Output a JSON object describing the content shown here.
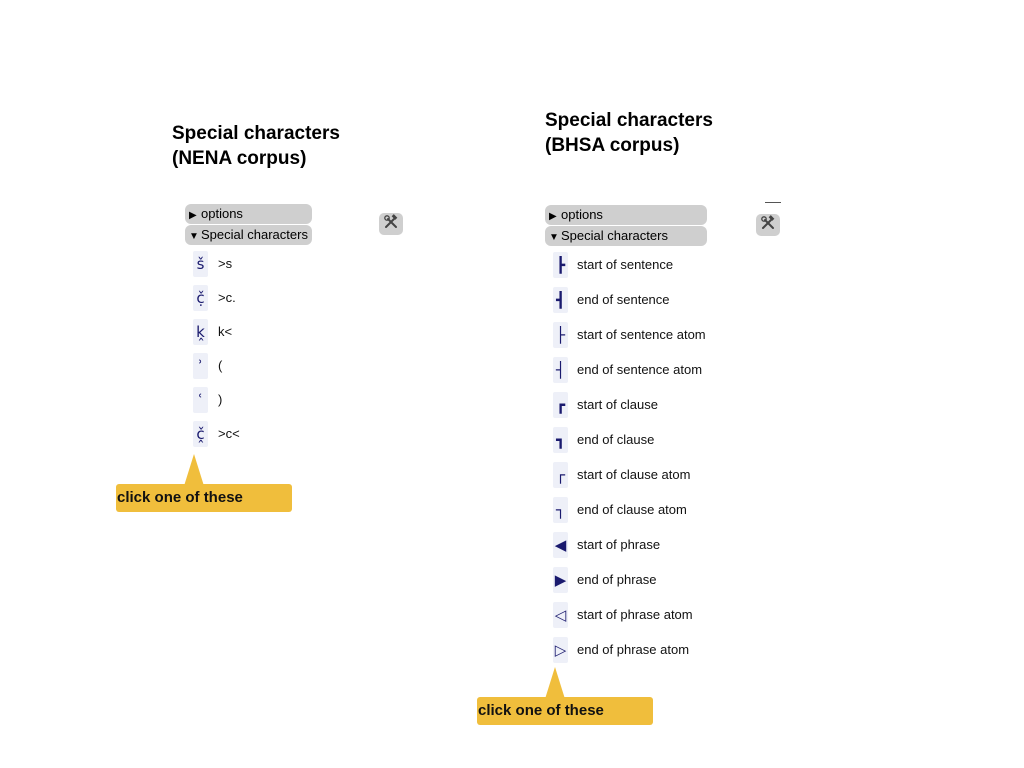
{
  "left": {
    "title_line1": "Special characters",
    "title_line2": "(NENA corpus)",
    "options_label": "options",
    "special_label": "Special characters",
    "tool_icon": "tools-icon",
    "items": [
      {
        "char": "š",
        "label": ">s"
      },
      {
        "char": "č̣",
        "label": ">c."
      },
      {
        "char": "k̭",
        "label": "k<"
      },
      {
        "char": "ʾ",
        "label": "("
      },
      {
        "char": "ʿ",
        "label": ")"
      },
      {
        "char": "č̭",
        "label": ">c<"
      }
    ],
    "callout": "click one of these"
  },
  "right": {
    "title_line1": "Special characters",
    "title_line2": "(BHSA corpus)",
    "options_label": "options",
    "special_label": "Special characters",
    "tool_icon": "tools-icon",
    "items": [
      {
        "char": "┣",
        "label": "start of sentence"
      },
      {
        "char": "┫",
        "label": "end of sentence"
      },
      {
        "char": "├",
        "label": "start of sentence atom"
      },
      {
        "char": "┤",
        "label": "end of sentence atom"
      },
      {
        "char": "┏",
        "label": "start of clause"
      },
      {
        "char": "┓",
        "label": "end of clause"
      },
      {
        "char": "┌",
        "label": "start of clause atom"
      },
      {
        "char": "┐",
        "label": "end of clause atom"
      },
      {
        "char": "◀",
        "label": "start of phrase"
      },
      {
        "char": "▶",
        "label": "end of phrase"
      },
      {
        "char": "◁",
        "label": "start of phrase atom"
      },
      {
        "char": "▷",
        "label": "end of phrase atom"
      }
    ],
    "callout": "click one of these"
  },
  "colors": {
    "callout": "#f0be3c",
    "pill": "#cfcfcf",
    "char_bg": "#eef0f8",
    "char_fg": "#1a1a6e"
  }
}
